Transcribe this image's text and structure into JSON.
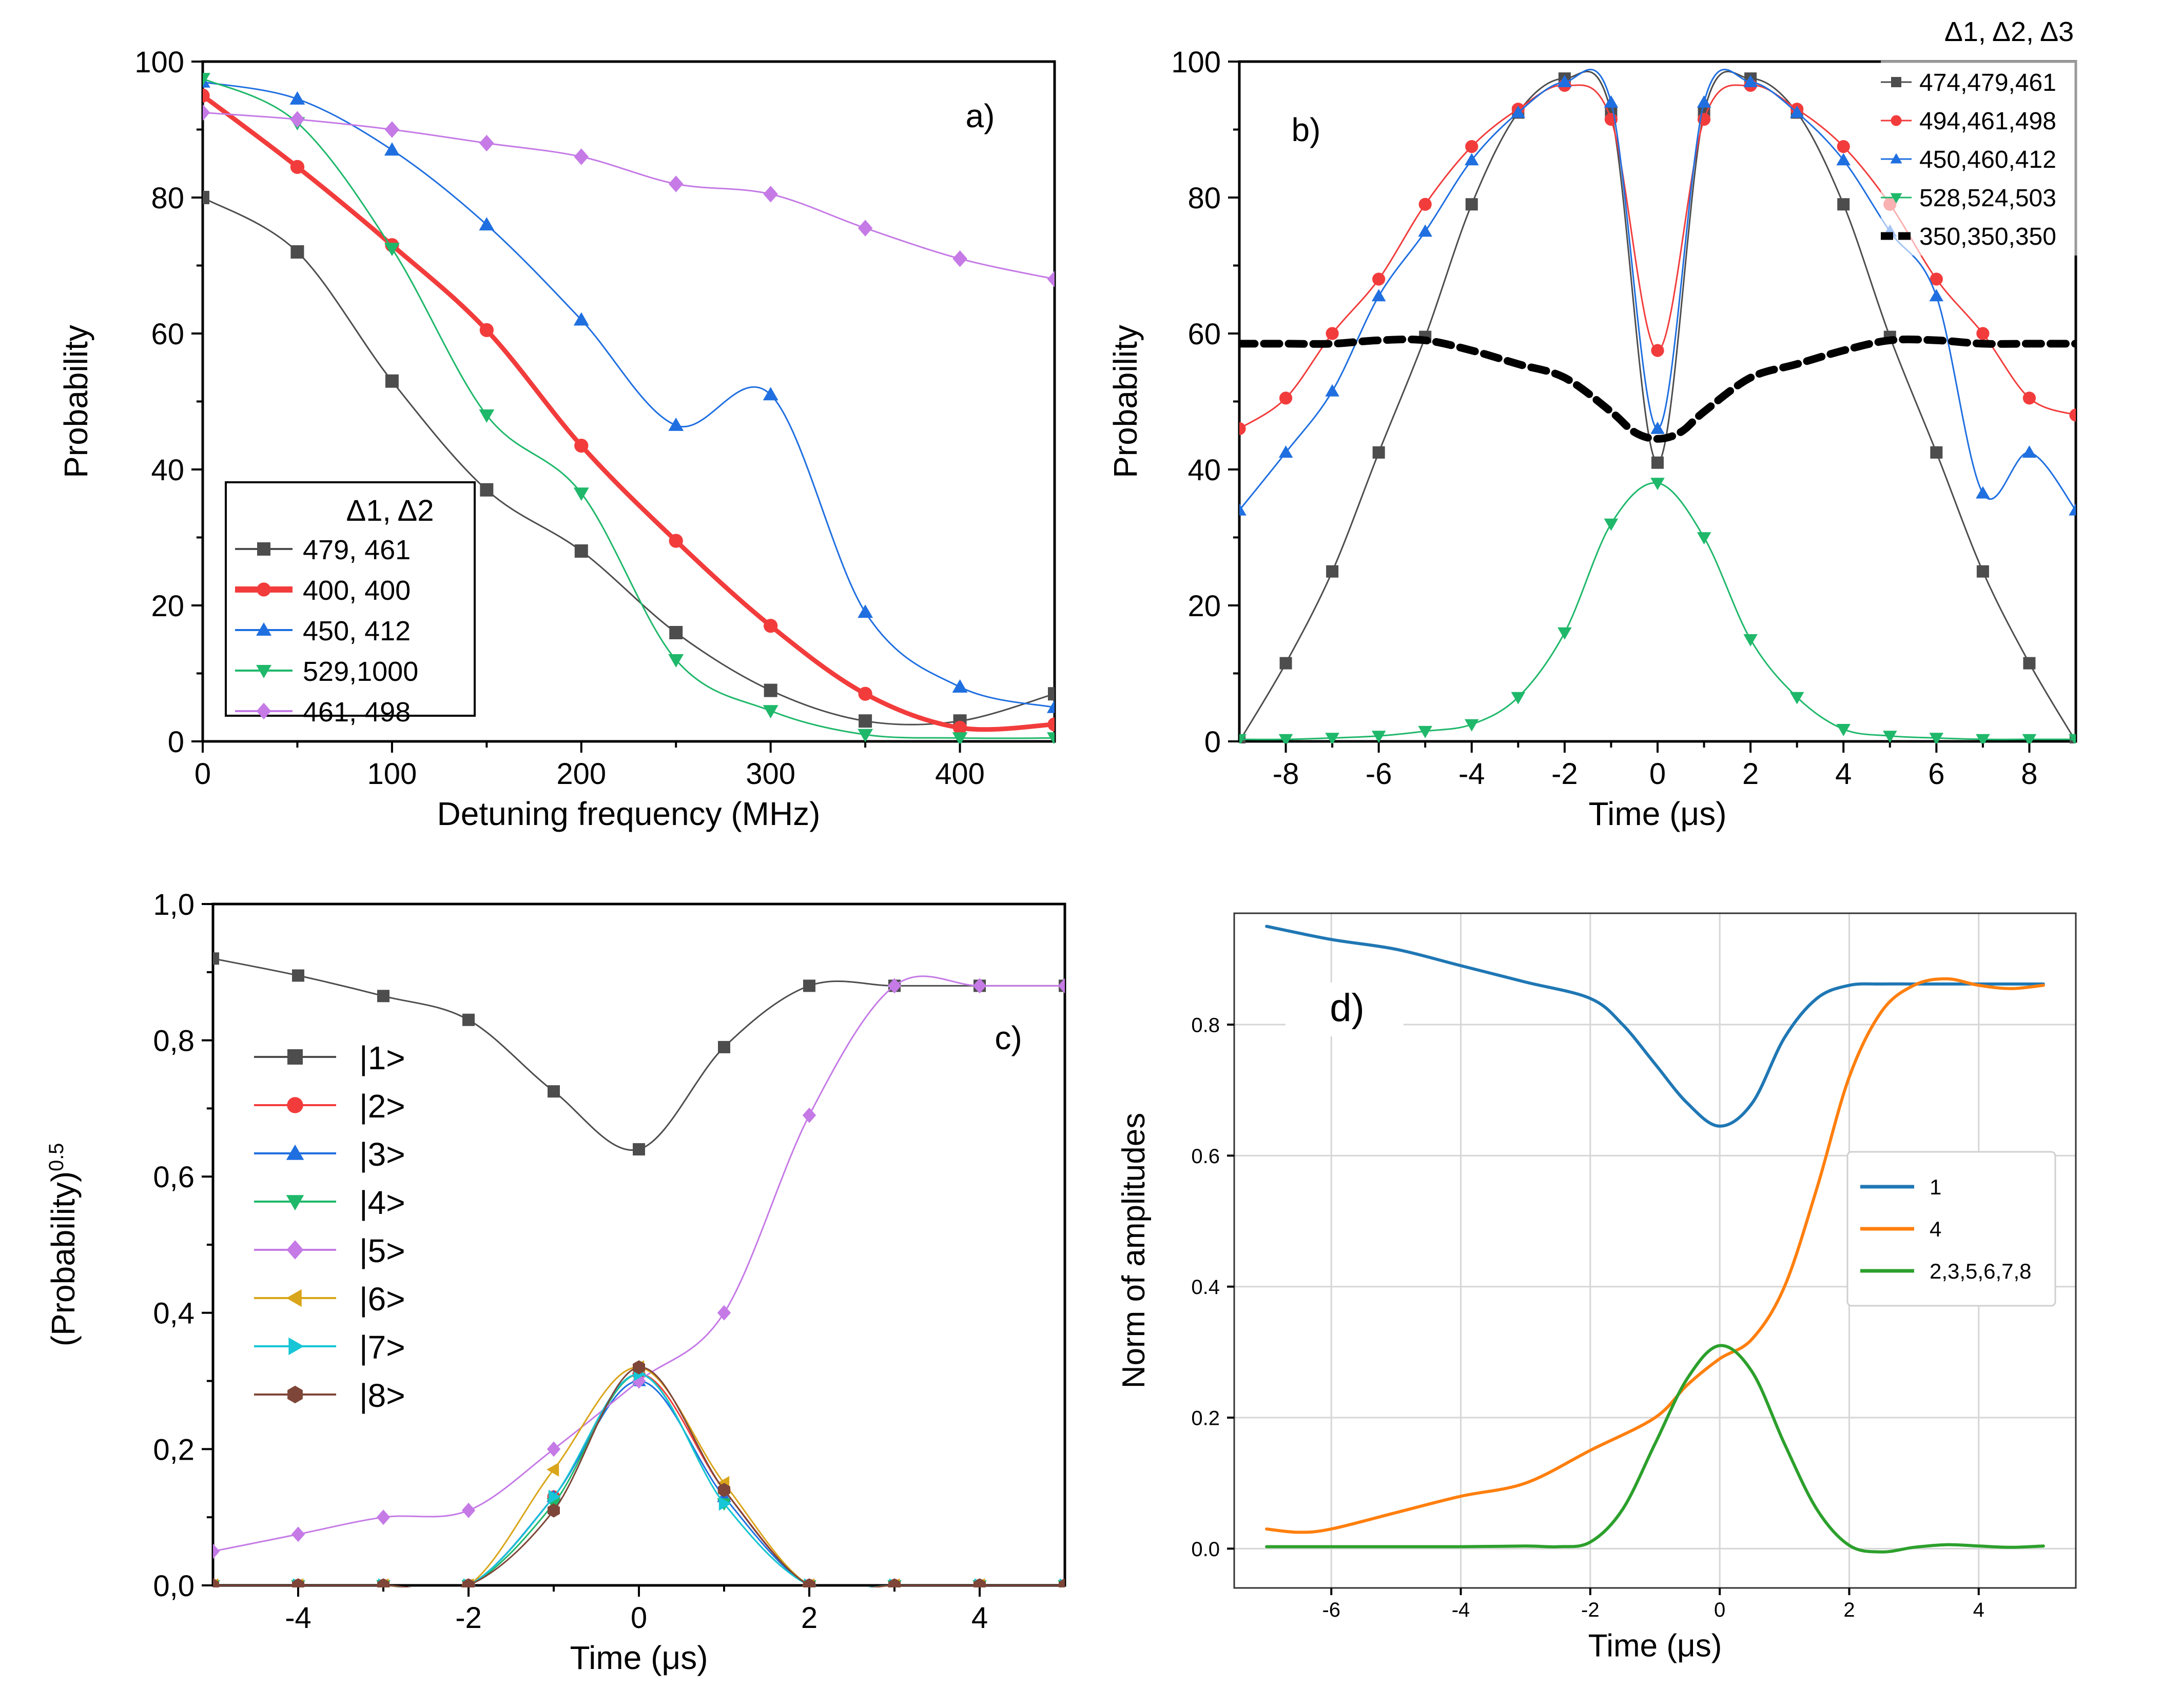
{
  "colors": {
    "black": "#4d4d4d",
    "red": "#f23c3c",
    "blue": "#1f6fe0",
    "green": "#1fb86a",
    "violet": "#c57ae6",
    "orange": "#d9a51a",
    "cyan": "#16c6d6",
    "brown": "#7e4638",
    "d_blue": "#1f77b4",
    "d_orange": "#ff7f0e",
    "d_green": "#2ca02c"
  },
  "chart_data": [
    {
      "panel": "a",
      "type": "line",
      "panel_label": "a)",
      "xlabel": "Detuning frequency (MHz)",
      "ylabel": "Probability",
      "xlim": [
        0,
        450
      ],
      "ylim": [
        0,
        100
      ],
      "xticks": [
        0,
        100,
        200,
        300,
        400
      ],
      "yticks": [
        0,
        20,
        40,
        60,
        80,
        100
      ],
      "legend_title": "Δ1, Δ2",
      "legend_position": "bottom-left",
      "series": [
        {
          "name": "479, 461",
          "color": "#4d4d4d",
          "marker": "square",
          "width": 1,
          "x": [
            0,
            50,
            100,
            150,
            200,
            250,
            300,
            350,
            400,
            450
          ],
          "y": [
            80,
            72,
            53,
            37,
            28,
            16,
            7.5,
            3,
            3,
            7
          ]
        },
        {
          "name": "400, 400",
          "color": "#f23c3c",
          "marker": "circle",
          "width": 3,
          "x": [
            0,
            50,
            100,
            150,
            200,
            250,
            300,
            350,
            400,
            450
          ],
          "y": [
            95,
            84.5,
            73,
            60.5,
            43.5,
            29.5,
            17,
            7,
            2,
            2.5
          ]
        },
        {
          "name": "450, 412",
          "color": "#1f6fe0",
          "marker": "triangle-up",
          "width": 1,
          "x": [
            0,
            50,
            100,
            150,
            200,
            250,
            300,
            350,
            400,
            450
          ],
          "y": [
            97,
            94.5,
            87,
            76,
            62,
            46.5,
            51,
            19,
            8,
            5
          ]
        },
        {
          "name": "529,1000",
          "color": "#1fb86a",
          "marker": "triangle-down",
          "width": 1,
          "x": [
            0,
            50,
            100,
            150,
            200,
            250,
            300,
            350,
            400,
            450
          ],
          "y": [
            97.5,
            91,
            72.5,
            48,
            36.5,
            12,
            4.5,
            1,
            0.5,
            0.5
          ]
        },
        {
          "name": "461, 498",
          "color": "#c57ae6",
          "marker": "diamond",
          "width": 1,
          "x": [
            0,
            50,
            100,
            150,
            200,
            250,
            300,
            350,
            400,
            450
          ],
          "y": [
            92.5,
            91.5,
            90,
            88,
            86,
            82,
            80.5,
            75.5,
            71,
            68
          ]
        }
      ]
    },
    {
      "panel": "b",
      "type": "line",
      "panel_label": "b)",
      "xlabel": "Time (μs)",
      "ylabel": "Probability",
      "xlim": [
        -9,
        9
      ],
      "ylim": [
        0,
        100
      ],
      "xticks": [
        -8,
        -6,
        -4,
        -2,
        0,
        2,
        4,
        6,
        8
      ],
      "yticks": [
        0,
        20,
        40,
        60,
        80,
        100
      ],
      "legend_title": "Δ1, Δ2, Δ3",
      "legend_position": "top-right",
      "series": [
        {
          "name": "474,479,461",
          "color": "#4d4d4d",
          "marker": "square",
          "width": 1,
          "x": [
            -9,
            -8,
            -7,
            -6,
            -5,
            -4,
            -3,
            -2,
            -1,
            0,
            1,
            2,
            3,
            4,
            5,
            6,
            7,
            8,
            9
          ],
          "y": [
            0,
            11.5,
            25,
            42.5,
            59.5,
            79,
            92.5,
            97.5,
            92.5,
            41,
            92.5,
            97.5,
            92.5,
            79,
            59.5,
            42.5,
            25,
            11.5,
            0
          ]
        },
        {
          "name": "494,461,498",
          "color": "#f23c3c",
          "marker": "circle",
          "width": 1,
          "x": [
            -9,
            -8,
            -7,
            -6,
            -5,
            -4,
            -3,
            -2,
            -1,
            0,
            1,
            2,
            3,
            4,
            5,
            6,
            7,
            8,
            9
          ],
          "y": [
            46,
            50.5,
            60,
            68,
            79,
            87.5,
            93,
            96.5,
            91.5,
            57.5,
            91.5,
            96.5,
            93,
            87.5,
            79,
            68,
            60,
            50.5,
            48
          ]
        },
        {
          "name": "450,460,412",
          "color": "#1f6fe0",
          "marker": "triangle-up",
          "width": 1,
          "x": [
            -9,
            -8,
            -7,
            -6,
            -5,
            -4,
            -3,
            -2,
            -1,
            0,
            1,
            2,
            3,
            4,
            5,
            6,
            7,
            8,
            9
          ],
          "y": [
            34,
            42.5,
            51.5,
            65.5,
            75,
            85.5,
            92.5,
            97,
            94,
            46,
            94,
            97,
            92.5,
            85.5,
            75,
            65.5,
            36.5,
            42.5,
            34
          ]
        },
        {
          "name": "528,524,503",
          "color": "#1fb86a",
          "marker": "triangle-down",
          "width": 1,
          "x": [
            -9,
            -8,
            -7,
            -6,
            -5,
            -4,
            -3,
            -2,
            -1,
            0,
            1,
            2,
            3,
            4,
            5,
            6,
            7,
            8,
            9
          ],
          "y": [
            0.3,
            0.3,
            0.5,
            0.8,
            1.5,
            2.5,
            6.5,
            16,
            32,
            38,
            30,
            15,
            6.5,
            1.8,
            0.8,
            0.5,
            0.3,
            0.3,
            0.3
          ]
        },
        {
          "name": "350,350,350",
          "color": "#000000",
          "marker": "none",
          "width": 5,
          "dash": true,
          "x": [
            -9,
            -8,
            -7,
            -6,
            -5,
            -4,
            -3,
            -2,
            -1,
            -0.5,
            0,
            0.5,
            1,
            2,
            3,
            4,
            5,
            6,
            7,
            8,
            9
          ],
          "y": [
            58.5,
            58.5,
            58.5,
            59,
            59,
            57.5,
            55.5,
            53.5,
            48.5,
            45.5,
            44.5,
            45.5,
            48.5,
            53.5,
            55.5,
            57.5,
            59,
            59,
            58.5,
            58.5,
            58.5
          ]
        }
      ]
    },
    {
      "panel": "c",
      "type": "line",
      "panel_label": "c)",
      "xlabel": "Time (μs)",
      "ylabel": "(Probability)",
      "ylabel_sup": "0.5",
      "xlim": [
        -5,
        5
      ],
      "ylim": [
        0,
        1
      ],
      "xticks": [
        -4,
        -2,
        0,
        2,
        4
      ],
      "yticks": [
        "0,0",
        "0,2",
        "0,4",
        "0,6",
        "0,8",
        "1,0"
      ],
      "legend_position": "left",
      "series": [
        {
          "name": "|1>",
          "color": "#4d4d4d",
          "marker": "square",
          "x": [
            -5,
            -4,
            -3,
            -2,
            -1,
            0,
            1,
            2,
            3,
            4,
            5
          ],
          "y": [
            0.92,
            0.895,
            0.865,
            0.83,
            0.725,
            0.64,
            0.79,
            0.88,
            0.88,
            0.88,
            0.88
          ]
        },
        {
          "name": "|2>",
          "color": "#f23c3c",
          "marker": "circle",
          "x": [
            -5,
            -4,
            -3,
            -2,
            -1,
            0,
            1,
            2,
            3,
            4,
            5
          ],
          "y": [
            0,
            0,
            0,
            0,
            0.13,
            0.31,
            0.14,
            0,
            0,
            0,
            0
          ]
        },
        {
          "name": "|3>",
          "color": "#1f6fe0",
          "marker": "triangle-up",
          "x": [
            -5,
            -4,
            -3,
            -2,
            -1,
            0,
            1,
            2,
            3,
            4,
            5
          ],
          "y": [
            0,
            0,
            0,
            0,
            0.13,
            0.3,
            0.13,
            0,
            0,
            0,
            0
          ]
        },
        {
          "name": "|4>",
          "color": "#1fb86a",
          "marker": "triangle-down",
          "x": [
            -5,
            -4,
            -3,
            -2,
            -1,
            0,
            1,
            2,
            3,
            4,
            5
          ],
          "y": [
            0,
            0,
            0,
            0,
            0.12,
            0.31,
            0.12,
            0,
            0,
            0,
            0
          ]
        },
        {
          "name": "|5>",
          "color": "#c57ae6",
          "marker": "diamond",
          "x": [
            -5,
            -4,
            -3,
            -2,
            -1,
            0,
            1,
            2,
            3,
            4,
            5
          ],
          "y": [
            0.05,
            0.075,
            0.1,
            0.11,
            0.2,
            0.3,
            0.4,
            0.69,
            0.88,
            0.88,
            0.88
          ]
        },
        {
          "name": "|6>",
          "color": "#d9a51a",
          "marker": "triangle-left",
          "x": [
            -5,
            -4,
            -3,
            -2,
            -1,
            0,
            1,
            2,
            3,
            4,
            5
          ],
          "y": [
            0,
            0,
            0,
            0,
            0.17,
            0.32,
            0.15,
            0,
            0,
            0,
            0
          ]
        },
        {
          "name": "|7>",
          "color": "#16c6d6",
          "marker": "triangle-right",
          "x": [
            -5,
            -4,
            -3,
            -2,
            -1,
            0,
            1,
            2,
            3,
            4,
            5
          ],
          "y": [
            0,
            0,
            0,
            0,
            0.13,
            0.31,
            0.12,
            0,
            0,
            0,
            0
          ]
        },
        {
          "name": "|8>",
          "color": "#7e4638",
          "marker": "hexagon",
          "x": [
            -5,
            -4,
            -3,
            -2,
            -1,
            0,
            1,
            2,
            3,
            4,
            5
          ],
          "y": [
            0,
            0,
            0,
            0,
            0.11,
            0.32,
            0.14,
            0,
            0,
            0,
            0
          ]
        }
      ]
    },
    {
      "panel": "d",
      "type": "line",
      "panel_label": "d)",
      "xlabel": "Time (μs)",
      "ylabel": "Norm of amplitudes",
      "xlim": [
        -7.5,
        5.5
      ],
      "ylim": [
        -0.06,
        0.97
      ],
      "xticks": [
        -6,
        -4,
        -2,
        0,
        2,
        4
      ],
      "yticks": [
        "0.0",
        "0.2",
        "0.4",
        "0.6",
        "0.8"
      ],
      "grid": true,
      "legend_position": "center-right",
      "series": [
        {
          "name": "1",
          "color": "#1f77b4",
          "x": [
            -7,
            -6,
            -5,
            -4,
            -3,
            -2,
            -1.5,
            -1,
            -0.5,
            0,
            0.5,
            1,
            1.5,
            2,
            2.5,
            3,
            3.5,
            4,
            4.5,
            5
          ],
          "y": [
            0.95,
            0.93,
            0.915,
            0.89,
            0.865,
            0.84,
            0.8,
            0.74,
            0.68,
            0.645,
            0.68,
            0.78,
            0.84,
            0.86,
            0.862,
            0.862,
            0.862,
            0.862,
            0.862,
            0.862
          ]
        },
        {
          "name": "4",
          "color": "#ff7f0e",
          "x": [
            -7,
            -6.5,
            -6,
            -5,
            -4,
            -3,
            -2,
            -1,
            -0.5,
            0,
            0.5,
            1,
            1.5,
            2,
            2.5,
            3,
            3.5,
            4,
            4.5,
            5
          ],
          "y": [
            0.03,
            0.025,
            0.03,
            0.055,
            0.08,
            0.1,
            0.15,
            0.2,
            0.25,
            0.29,
            0.32,
            0.4,
            0.55,
            0.72,
            0.82,
            0.86,
            0.87,
            0.86,
            0.855,
            0.86
          ]
        },
        {
          "name": "2,3,5,6,7,8",
          "color": "#2ca02c",
          "x": [
            -7,
            -6,
            -5,
            -4,
            -3,
            -2.5,
            -2,
            -1.5,
            -1,
            -0.5,
            0,
            0.5,
            1,
            1.5,
            2,
            2.5,
            3,
            3.5,
            4,
            4.5,
            5
          ],
          "y": [
            0.003,
            0.003,
            0.003,
            0.003,
            0.004,
            0.003,
            0.01,
            0.06,
            0.16,
            0.26,
            0.31,
            0.27,
            0.16,
            0.06,
            0.005,
            -0.005,
            0.002,
            0.006,
            0.004,
            0.002,
            0.004
          ]
        }
      ]
    }
  ]
}
